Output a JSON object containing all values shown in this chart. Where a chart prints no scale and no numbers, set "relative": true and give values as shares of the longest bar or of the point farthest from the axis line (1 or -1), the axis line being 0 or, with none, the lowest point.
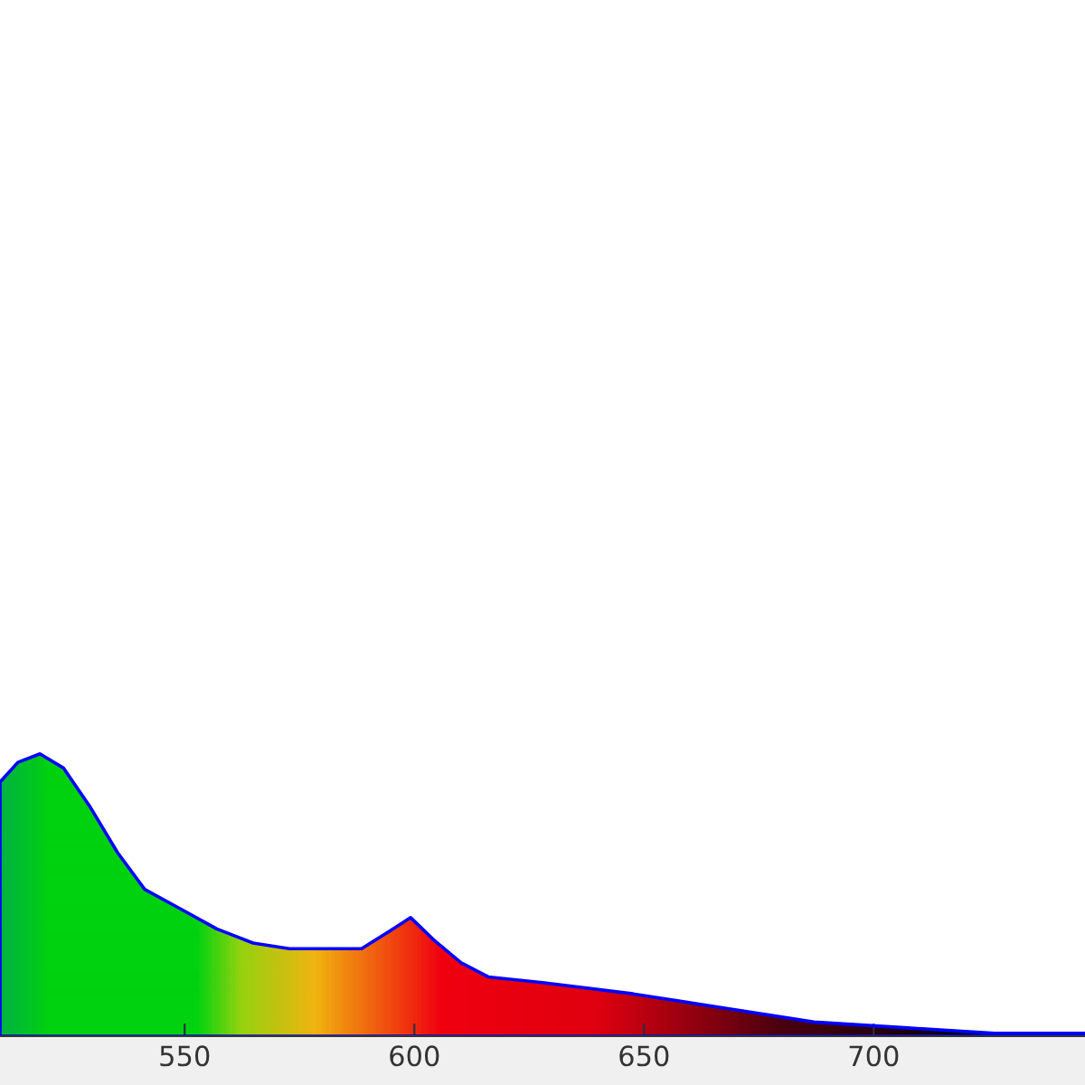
{
  "chart_data": {
    "type": "area",
    "relative": true,
    "x": [
      509.8,
      513.7,
      518.5,
      523.6,
      529.5,
      535.4,
      541.3,
      549.2,
      557.0,
      564.9,
      572.8,
      588.5,
      594.4,
      599.2,
      604.3,
      610.2,
      616.1,
      627.9,
      647.6,
      667.3,
      687.0,
      706.7,
      726.3,
      746.0
    ],
    "series": [
      {
        "color": "#0000ff",
        "values": [
          0.9,
          0.97,
          1.0,
          0.95,
          0.81,
          0.65,
          0.52,
          0.45,
          0.38,
          0.33,
          0.31,
          0.31,
          0.37,
          0.42,
          0.34,
          0.26,
          0.21,
          0.19,
          0.15,
          0.1,
          0.05,
          0.03,
          0.01,
          0.01
        ]
      }
    ],
    "xlim": [
      509.8,
      746
    ],
    "xticks": [
      550,
      600,
      650,
      700
    ],
    "grid": false,
    "legend": false
  }
}
